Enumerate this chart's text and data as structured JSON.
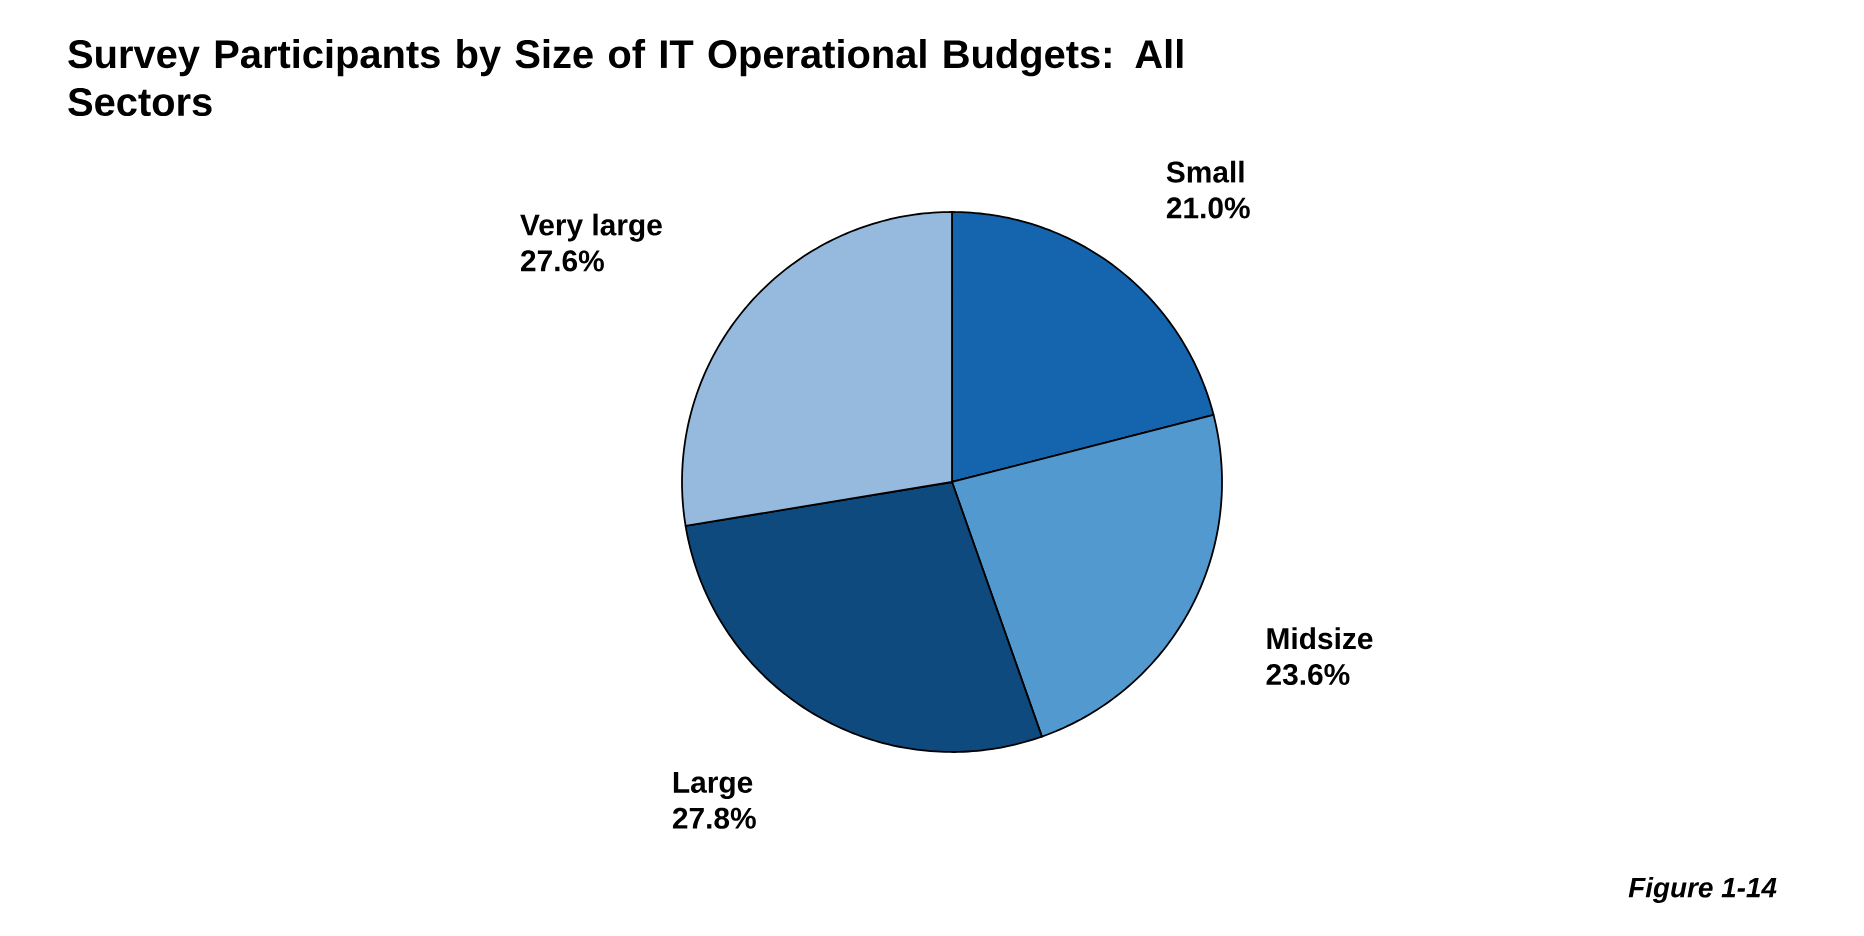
{
  "chart_data": {
    "type": "pie",
    "title": "Survey Participants by Size of IT Operational Budgets: All Sectors",
    "categories": [
      "Small",
      "Midsize",
      "Large",
      "Very large"
    ],
    "values": [
      21.0,
      23.6,
      27.8,
      27.6
    ],
    "value_labels": [
      "21.0%",
      "23.6%",
      "27.8%",
      "27.6%"
    ],
    "colors": [
      "#1464ae",
      "#5299d0",
      "#0e4a7e",
      "#95bade"
    ],
    "annotations": [
      "Figure 1-14"
    ]
  }
}
